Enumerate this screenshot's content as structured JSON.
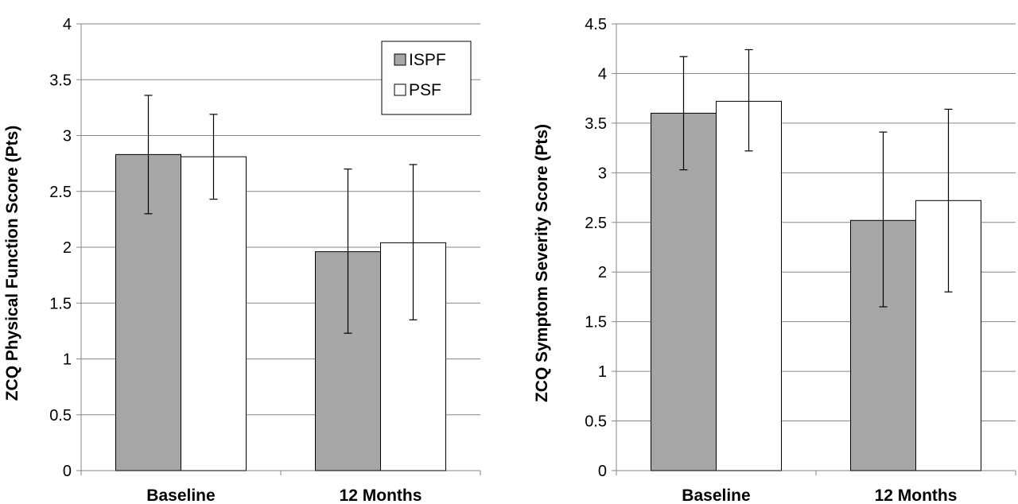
{
  "chart_data": [
    {
      "type": "bar",
      "categories": [
        "Baseline",
        "12 Months"
      ],
      "ylabel": "ZCQ Physical Function Score (Pts)",
      "ylim": [
        0,
        4
      ],
      "ytick_step": 0.5,
      "yticks": [
        "0",
        "0.5",
        "1",
        "1.5",
        "2",
        "2.5",
        "3",
        "3.5",
        "4"
      ],
      "grid": true,
      "legend_position": "top-right",
      "series": [
        {
          "name": "ISPF",
          "values": [
            2.83,
            1.96
          ],
          "error_low": [
            2.3,
            1.23
          ],
          "error_high": [
            3.36,
            2.7
          ],
          "color": "#a6a6a6"
        },
        {
          "name": "PSF",
          "values": [
            2.81,
            2.04
          ],
          "error_low": [
            2.43,
            1.35
          ],
          "error_high": [
            3.19,
            2.74
          ],
          "color": "#ffffff"
        }
      ]
    },
    {
      "type": "bar",
      "categories": [
        "Baseline",
        "12 Months"
      ],
      "ylabel": "ZCQ Symptom Severity Score (Pts)",
      "ylim": [
        0,
        4.5
      ],
      "ytick_step": 0.5,
      "yticks": [
        "0",
        "0.5",
        "1",
        "1.5",
        "2",
        "2.5",
        "3",
        "3.5",
        "4",
        "4.5"
      ],
      "grid": true,
      "series": [
        {
          "name": "ISPF",
          "values": [
            3.6,
            2.52
          ],
          "error_low": [
            3.03,
            1.65
          ],
          "error_high": [
            4.17,
            3.41
          ],
          "color": "#a6a6a6"
        },
        {
          "name": "PSF",
          "values": [
            3.72,
            2.72
          ],
          "error_low": [
            3.22,
            1.8
          ],
          "error_high": [
            4.24,
            3.64
          ],
          "color": "#ffffff"
        }
      ]
    }
  ]
}
